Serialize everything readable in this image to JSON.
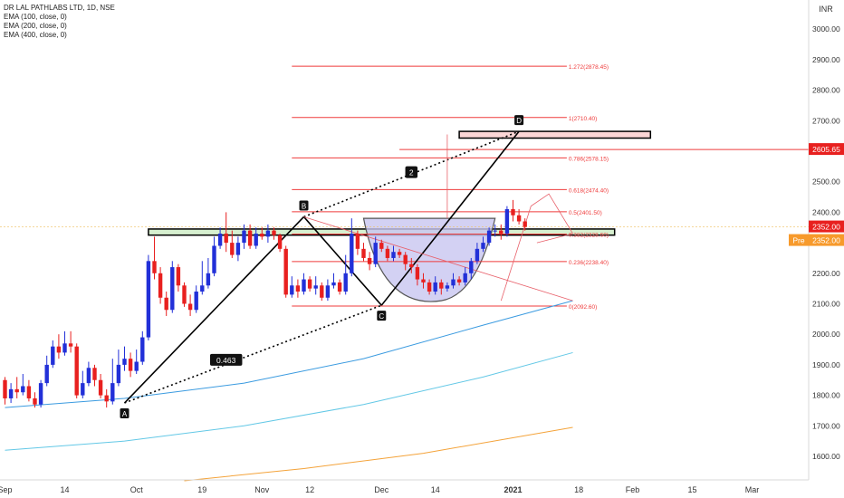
{
  "legend": {
    "symbol_line": "DR LAL PATHLABS LTD, 1D, NSE",
    "ema_lines": [
      "EMA (100, close, 0)",
      "EMA (200, close, 0)",
      "EMA (400, close, 0)"
    ]
  },
  "colors": {
    "up": "#2230d8",
    "down": "#e8201f",
    "fib": "#ef3b3b",
    "ema100": "#3b9be0",
    "ema200": "#63c8e6",
    "ema400": "#f4a33a",
    "support_zone": "#d7f0d0",
    "target_zone": "#fbd6d6",
    "cup_fill": "#c8c6f0"
  },
  "chart_data": {
    "type": "candlestick",
    "title": "DR LAL PATHLABS LTD, 1D, NSE",
    "ylabel": "INR",
    "ylim": [
      1520,
      3060
    ],
    "y_ticks": [
      1600,
      1700,
      1800,
      1900,
      2000,
      2100,
      2200,
      2300,
      2400,
      2500,
      2600,
      2700,
      2800,
      2900,
      3000
    ],
    "x_ticks": [
      "Sep",
      "14",
      "Oct",
      "19",
      "Nov",
      "12",
      "Dec",
      "14",
      "2021",
      "18",
      "Feb",
      "15",
      "Mar"
    ],
    "x_tick_index": [
      0,
      10,
      22,
      33,
      43,
      51,
      63,
      72,
      85,
      96,
      105,
      115,
      125
    ],
    "candles": [
      [
        1850,
        1790,
        1860,
        1770
      ],
      [
        1790,
        1820,
        1840,
        1775
      ],
      [
        1820,
        1810,
        1860,
        1790
      ],
      [
        1810,
        1830,
        1870,
        1800
      ],
      [
        1830,
        1790,
        1850,
        1780
      ],
      [
        1790,
        1770,
        1810,
        1760
      ],
      [
        1770,
        1840,
        1850,
        1760
      ],
      [
        1840,
        1900,
        1930,
        1830
      ],
      [
        1900,
        1960,
        1980,
        1890
      ],
      [
        1960,
        1940,
        2000,
        1920
      ],
      [
        1940,
        1970,
        2010,
        1930
      ],
      [
        1970,
        1960,
        2010,
        1940
      ],
      [
        1960,
        1800,
        1970,
        1790
      ],
      [
        1800,
        1840,
        1880,
        1790
      ],
      [
        1840,
        1890,
        1910,
        1830
      ],
      [
        1890,
        1850,
        1900,
        1830
      ],
      [
        1850,
        1800,
        1870,
        1790
      ],
      [
        1800,
        1780,
        1820,
        1760
      ],
      [
        1780,
        1840,
        1920,
        1770
      ],
      [
        1840,
        1900,
        1950,
        1830
      ],
      [
        1900,
        1920,
        1960,
        1880
      ],
      [
        1920,
        1880,
        1940,
        1860
      ],
      [
        1880,
        1910,
        1950,
        1870
      ],
      [
        1910,
        1990,
        2010,
        1900
      ],
      [
        1990,
        2240,
        2260,
        1980
      ],
      [
        2240,
        2200,
        2320,
        2180
      ],
      [
        2200,
        2120,
        2220,
        2100
      ],
      [
        2120,
        2080,
        2140,
        2060
      ],
      [
        2080,
        2220,
        2240,
        2070
      ],
      [
        2220,
        2160,
        2230,
        2140
      ],
      [
        2160,
        2100,
        2170,
        2090
      ],
      [
        2100,
        2080,
        2130,
        2060
      ],
      [
        2080,
        2140,
        2160,
        2070
      ],
      [
        2140,
        2160,
        2240,
        2130
      ],
      [
        2160,
        2200,
        2250,
        2150
      ],
      [
        2200,
        2290,
        2320,
        2190
      ],
      [
        2290,
        2330,
        2350,
        2280
      ],
      [
        2330,
        2300,
        2400,
        2270
      ],
      [
        2300,
        2260,
        2340,
        2250
      ],
      [
        2260,
        2300,
        2320,
        2240
      ],
      [
        2300,
        2340,
        2360,
        2280
      ],
      [
        2340,
        2290,
        2360,
        2280
      ],
      [
        2290,
        2330,
        2350,
        2280
      ],
      [
        2330,
        2320,
        2350,
        2310
      ],
      [
        2320,
        2340,
        2360,
        2300
      ],
      [
        2340,
        2325,
        2350,
        2310
      ],
      [
        2325,
        2280,
        2330,
        2270
      ],
      [
        2280,
        2130,
        2290,
        2120
      ],
      [
        2130,
        2160,
        2190,
        2120
      ],
      [
        2160,
        2140,
        2180,
        2120
      ],
      [
        2140,
        2180,
        2200,
        2130
      ],
      [
        2180,
        2150,
        2190,
        2140
      ],
      [
        2150,
        2160,
        2190,
        2130
      ],
      [
        2160,
        2120,
        2170,
        2110
      ],
      [
        2120,
        2160,
        2180,
        2110
      ],
      [
        2160,
        2170,
        2200,
        2150
      ],
      [
        2170,
        2140,
        2180,
        2130
      ],
      [
        2140,
        2200,
        2260,
        2130
      ],
      [
        2200,
        2330,
        2380,
        2190
      ],
      [
        2330,
        2280,
        2340,
        2260
      ],
      [
        2280,
        2250,
        2300,
        2240
      ],
      [
        2250,
        2230,
        2270,
        2210
      ],
      [
        2230,
        2300,
        2320,
        2220
      ],
      [
        2300,
        2280,
        2310,
        2270
      ],
      [
        2280,
        2250,
        2290,
        2240
      ],
      [
        2250,
        2270,
        2290,
        2240
      ],
      [
        2270,
        2260,
        2280,
        2250
      ],
      [
        2260,
        2230,
        2270,
        2210
      ],
      [
        2230,
        2220,
        2250,
        2200
      ],
      [
        2220,
        2180,
        2230,
        2160
      ],
      [
        2180,
        2170,
        2200,
        2150
      ],
      [
        2170,
        2140,
        2180,
        2130
      ],
      [
        2140,
        2170,
        2190,
        2130
      ],
      [
        2170,
        2150,
        2180,
        2130
      ],
      [
        2150,
        2160,
        2170,
        2140
      ],
      [
        2160,
        2180,
        2200,
        2150
      ],
      [
        2180,
        2170,
        2190,
        2160
      ],
      [
        2170,
        2200,
        2220,
        2160
      ],
      [
        2200,
        2240,
        2250,
        2180
      ],
      [
        2240,
        2280,
        2300,
        2230
      ],
      [
        2280,
        2300,
        2320,
        2270
      ],
      [
        2300,
        2340,
        2350,
        2290
      ],
      [
        2340,
        2340,
        2360,
        2320
      ],
      [
        2340,
        2330,
        2360,
        2310
      ],
      [
        2330,
        2410,
        2420,
        2320
      ],
      [
        2410,
        2390,
        2440,
        2370
      ],
      [
        2390,
        2370,
        2410,
        2360
      ],
      [
        2370,
        2352,
        2380,
        2340
      ]
    ],
    "ema_100": [
      [
        0,
        1760
      ],
      [
        20,
        1790
      ],
      [
        40,
        1840
      ],
      [
        60,
        1920
      ],
      [
        80,
        2030
      ],
      [
        95,
        2110
      ]
    ],
    "ema_200": [
      [
        0,
        1620
      ],
      [
        20,
        1650
      ],
      [
        40,
        1700
      ],
      [
        60,
        1770
      ],
      [
        80,
        1860
      ],
      [
        95,
        1940
      ]
    ],
    "ema_400": [
      [
        30,
        1520
      ],
      [
        50,
        1560
      ],
      [
        70,
        1610
      ],
      [
        95,
        1695
      ]
    ],
    "fib_levels": [
      {
        "ratio": 1.272,
        "price": 2878.45,
        "label": "1.272(2878.45)"
      },
      {
        "ratio": 1,
        "price": 2710.4,
        "label": "1(2710.40)"
      },
      {
        "ratio": 0.786,
        "price": 2578.15,
        "label": "0.786(2578.15)"
      },
      {
        "ratio": 0.618,
        "price": 2474.4,
        "label": "0.618(2474.40)"
      },
      {
        "ratio": 0.5,
        "price": 2401.5,
        "label": "0.5(2401.50)"
      },
      {
        "ratio": 0.382,
        "price": 2328.6,
        "label": "0.382(2328.60)"
      },
      {
        "ratio": 0.236,
        "price": 2238.4,
        "label": "0.236(2238.40)"
      },
      {
        "ratio": 0,
        "price": 2092.6,
        "label": "0(2092.60)"
      }
    ],
    "pattern_points": [
      {
        "label": "A",
        "idx": 20,
        "price": 1775
      },
      {
        "label": "B",
        "idx": 50,
        "price": 2385
      },
      {
        "label": "C",
        "idx": 63,
        "price": 2095
      },
      {
        "label": "D",
        "idx": 86,
        "price": 2665
      }
    ],
    "ratio_labels": [
      {
        "text": "0.463",
        "idx": 37,
        "price": 1915
      },
      {
        "text": "2",
        "idx": 68,
        "price": 2530
      }
    ],
    "zones": [
      {
        "name": "support",
        "idx_from": 24,
        "idx_to": 102,
        "price_top": 2345,
        "price_bottom": 2325
      },
      {
        "name": "target",
        "idx_from": 76,
        "idx_to": 108,
        "price_top": 2665,
        "price_bottom": 2643
      }
    ],
    "price_labels": [
      {
        "text": "2605.65",
        "price": 2605.65,
        "color": "#e8201f"
      },
      {
        "text": "2352.00",
        "price": 2352.0,
        "color": "#e8201f"
      },
      {
        "text": "2352.00",
        "price": 2352.0,
        "color": "#f79a2c",
        "prefix": "Pre"
      }
    ],
    "last_price": 2352.0,
    "horizontal_line_price": 2605.65
  }
}
